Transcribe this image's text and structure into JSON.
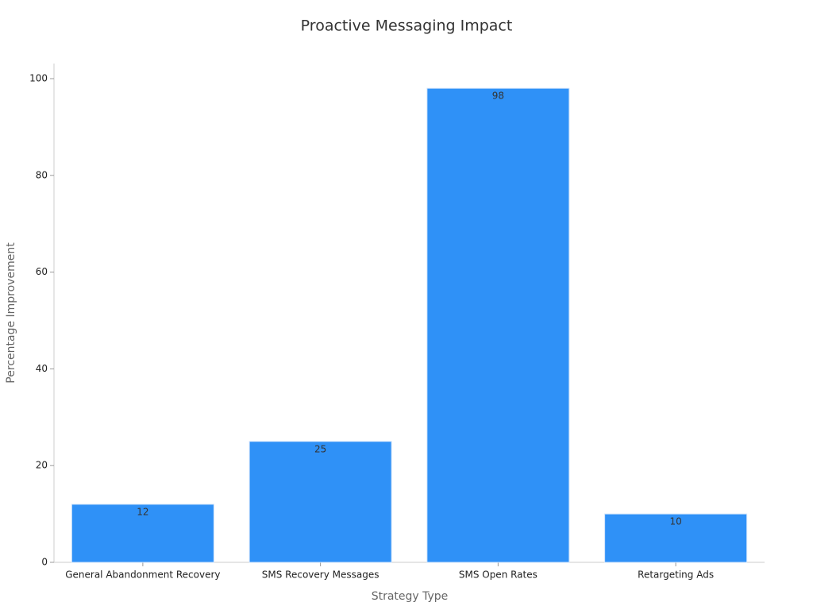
{
  "chart_data": {
    "type": "bar",
    "title": "Proactive Messaging Impact",
    "x_label": "Strategy Type",
    "y_label": "Percentage Improvement",
    "categories": [
      "General Abandonment Recovery",
      "SMS Recovery Messages",
      "SMS Open Rates",
      "Retargeting Ads"
    ],
    "values": [
      12,
      25,
      98,
      10
    ],
    "color": "#2f91f7",
    "ylim": [
      0,
      100
    ],
    "yticks": [
      0,
      20,
      40,
      60,
      80,
      100
    ],
    "grid": false
  }
}
